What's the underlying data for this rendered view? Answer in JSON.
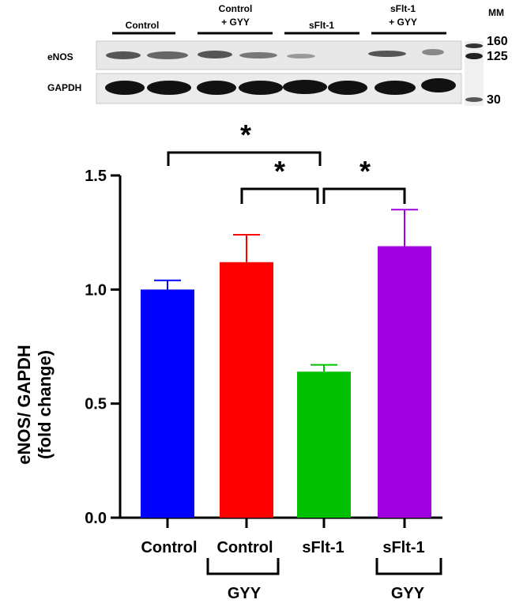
{
  "blot": {
    "lane_groups": [
      {
        "line1": "Control",
        "line2": ""
      },
      {
        "line1": "Control",
        "line2": "+ GYY"
      },
      {
        "line1": "sFlt-1",
        "line2": ""
      },
      {
        "line1": "sFlt-1",
        "line2": "+ GYY"
      }
    ],
    "mm_header": "MM",
    "markers": [
      "160",
      "125",
      "30"
    ],
    "rows": [
      "eNOS",
      "GAPDH"
    ]
  },
  "significance": [
    "*",
    "*",
    "*"
  ],
  "bracket_labels": [
    "GYY",
    "GYY"
  ],
  "colors": {
    "control": "#0000ff",
    "control_gyy": "#ff0000",
    "sflt1": "#00c000",
    "sflt1_gyy": "#a000e0"
  },
  "chart_data": {
    "type": "bar",
    "categories": [
      "Control",
      "Control",
      "sFlt-1",
      "sFlt-1"
    ],
    "values": [
      1.0,
      1.12,
      0.64,
      1.19
    ],
    "errors": [
      0.04,
      0.12,
      0.03,
      0.16
    ],
    "ylabel_line1": "eNOS/ GAPDH",
    "ylabel_line2": "(fold change)",
    "ylim": [
      0,
      1.5
    ],
    "yticks": [
      "0.0",
      "0.5",
      "1.0",
      "1.5"
    ],
    "ytick_values": [
      0,
      0.5,
      1.0,
      1.5
    ],
    "grid": false
  }
}
